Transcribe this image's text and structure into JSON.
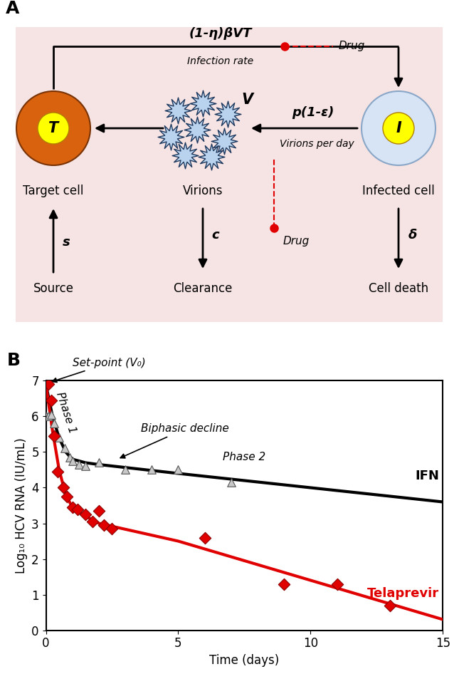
{
  "diagram": {
    "panel_label": "A",
    "nodes": {
      "target": {
        "label": "Target cell",
        "symbol": "T"
      },
      "virions": {
        "label": "Virions",
        "symbol": "V"
      },
      "infected": {
        "label": "Infected cell",
        "symbol": "I"
      },
      "source": {
        "label": "Source"
      },
      "clearance": {
        "label": "Clearance"
      },
      "death": {
        "label": "Cell death"
      }
    },
    "edges": [
      {
        "from": "target",
        "to": "infected",
        "label": "(1-η)βVT",
        "sublabel": "Infection rate",
        "inhibitor": "Drug"
      },
      {
        "from": "infected",
        "to": "virions",
        "label": "p(1-ε)",
        "sublabel": "Virions per day",
        "inhibitor": "Drug"
      },
      {
        "from": "virions",
        "to": "target"
      },
      {
        "from": "source",
        "to": "target",
        "label": "s"
      },
      {
        "from": "virions",
        "to": "clearance",
        "label": "c"
      },
      {
        "from": "infected",
        "to": "death",
        "label": "δ"
      }
    ]
  },
  "chart_data": {
    "type": "line",
    "title": "B",
    "x_label": "Time (days)",
    "y_label": "Log₁₀ HCV RNA (IU/mL)",
    "xlim": [
      0,
      15
    ],
    "xticks": [
      0,
      5,
      10,
      15
    ],
    "ylim": [
      0,
      7
    ],
    "yticks": [
      0,
      1,
      2,
      3,
      4,
      5,
      6,
      7
    ],
    "annotations": [
      "Set-point (V₀)",
      "Phase 1",
      "Biphasic decline",
      "Phase 2"
    ],
    "series": [
      {
        "name": "IFN",
        "type": "scatter",
        "marker": "triangle",
        "color": "#c8c8c8",
        "x": [
          0,
          0.1,
          0.2,
          0.3,
          0.5,
          0.7,
          0.9,
          1.0,
          1.25,
          1.5,
          2,
          3,
          4,
          5,
          7
        ],
        "values": [
          6.0,
          6.0,
          6.05,
          5.8,
          5.4,
          5.1,
          4.85,
          4.75,
          4.65,
          4.6,
          4.7,
          4.5,
          4.5,
          4.5,
          4.15
        ]
      },
      {
        "name": "IFN",
        "type": "line",
        "color": "#000000",
        "x": [
          0,
          0.25,
          0.5,
          0.75,
          1,
          1.5,
          2,
          5,
          10,
          15
        ],
        "values": [
          6.9,
          6.0,
          5.4,
          5.0,
          4.8,
          4.7,
          4.65,
          4.4,
          4.0,
          3.6
        ]
      },
      {
        "name": "Telaprevir",
        "type": "scatter",
        "marker": "diamond",
        "color": "#e00000",
        "x": [
          0.1,
          0.2,
          0.3,
          0.45,
          0.65,
          0.8,
          1.0,
          1.2,
          1.5,
          1.75,
          2.0,
          2.2,
          2.5,
          6,
          9,
          11,
          13
        ],
        "values": [
          6.9,
          6.45,
          5.45,
          4.45,
          4.0,
          3.75,
          3.45,
          3.4,
          3.25,
          3.05,
          3.35,
          2.95,
          2.85,
          2.6,
          1.3,
          1.3,
          0.7
        ]
      },
      {
        "name": "Telaprevir",
        "type": "line",
        "color": "#e00000",
        "x": [
          0,
          0.25,
          0.5,
          0.75,
          1,
          1.5,
          2,
          5,
          10,
          15
        ],
        "values": [
          6.9,
          5.6,
          4.5,
          3.8,
          3.45,
          3.2,
          3.0,
          2.5,
          1.4,
          0.3
        ]
      }
    ]
  }
}
